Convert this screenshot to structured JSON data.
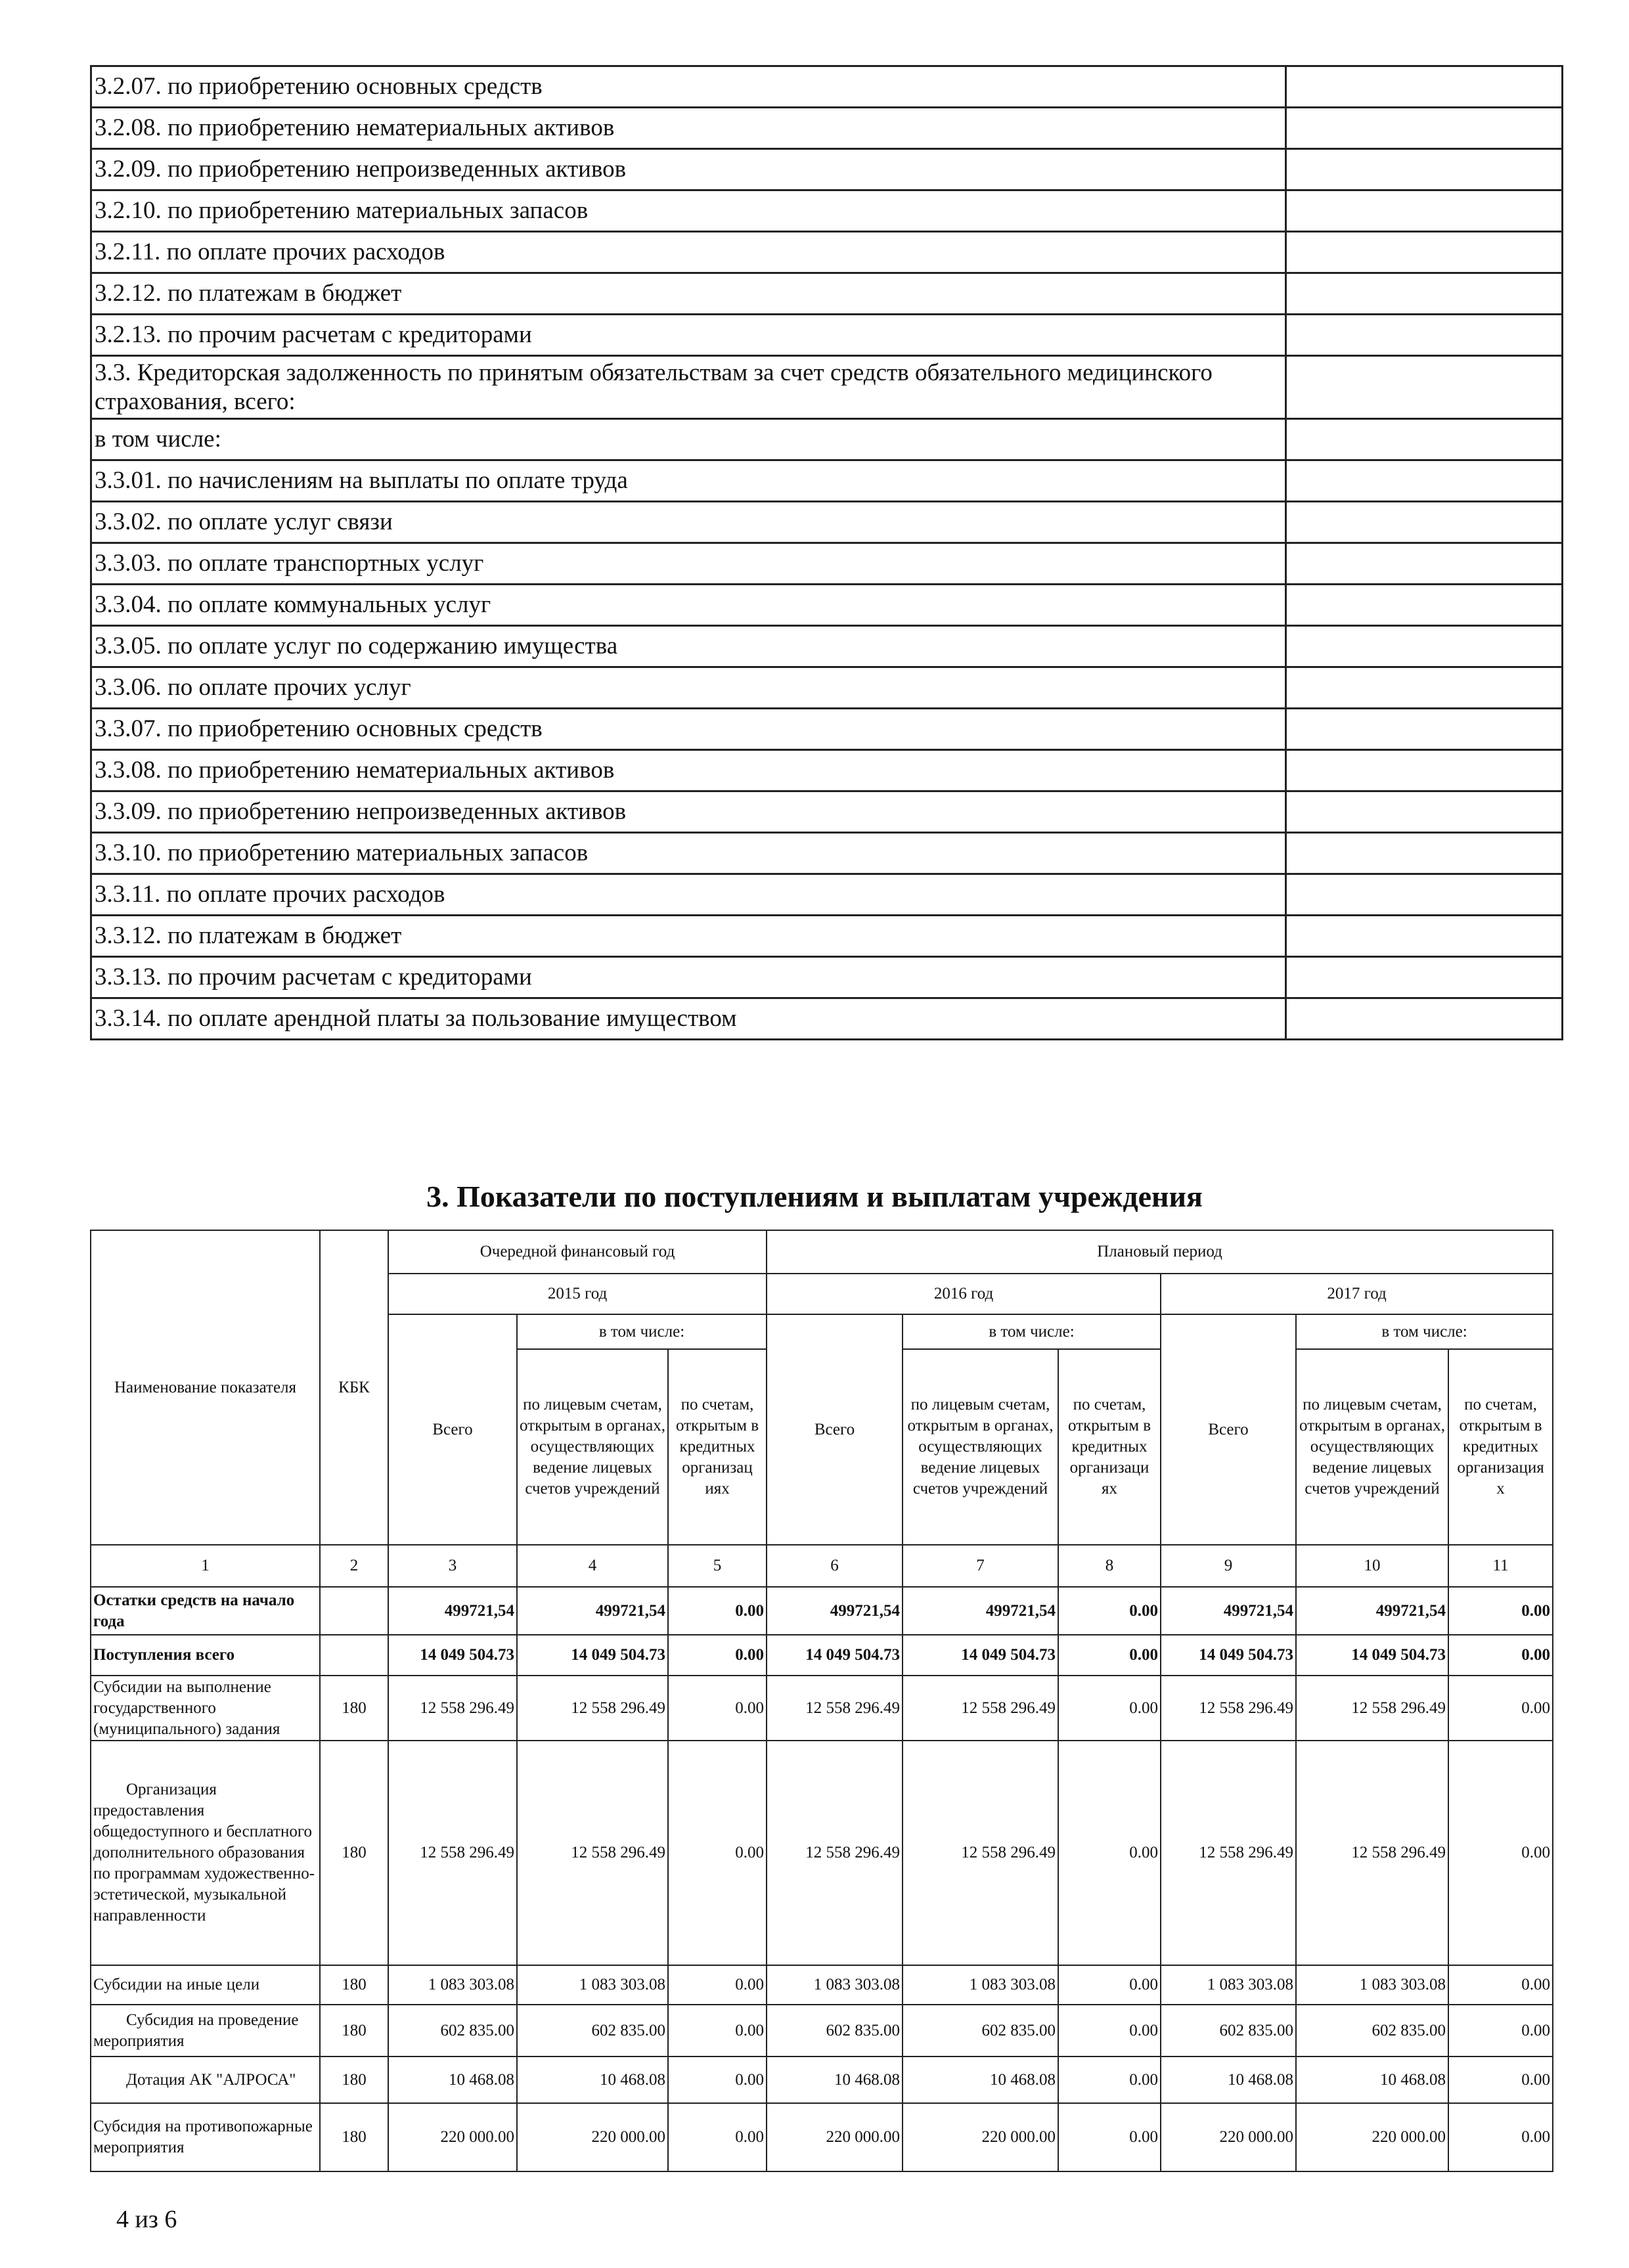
{
  "top_table": {
    "rows": [
      "3.2.07. по приобретению основных средств",
      "3.2.08. по приобретению нематериальных активов",
      "3.2.09. по приобретению непроизведенных активов",
      "3.2.10. по приобретению материальных запасов",
      "3.2.11. по оплате прочих расходов",
      "3.2.12. по платежам в бюджет",
      "3.2.13. по прочим расчетам с кредиторами",
      "3.3.   Кредиторская задолженность по принятым обязательствам за счет средств обязательного медицинского страхования, всего:",
      "в том числе:",
      "3.3.01. по начислениям на выплаты по оплате труда",
      "3.3.02. по оплате услуг связи",
      "3.3.03. по оплате транспортных услуг",
      "3.3.04. по оплате коммунальных услуг",
      "3.3.05. по оплате услуг по содержанию имущества",
      "3.3.06. по оплате прочих услуг",
      "3.3.07. по приобретению основных средств",
      "3.3.08. по приобретению нематериальных активов",
      "3.3.09. по приобретению непроизведенных активов",
      "3.3.10. по приобретению материальных запасов",
      "3.3.11. по оплате прочих расходов",
      "3.3.12. по платежам в бюджет",
      "3.3.13. по прочим расчетам с кредиторами",
      "3.3.14. по оплате арендной платы за пользование имуществом"
    ]
  },
  "section_title": "3. Показатели по поступлениям и выплатам учреждения",
  "main_table": {
    "header": {
      "name": "Наименование показателя",
      "kbk": "КБК",
      "current_year_group": "Очередной финансовый год",
      "planned_group": "Плановый период",
      "years": [
        "2015 год",
        "2016 год",
        "2017 год"
      ],
      "including": "в том числе:",
      "total": "Всего",
      "sub1": "по лицевым счетам, открытым в органах, осуществляющих ведение лицевых счетов учреждений",
      "sub2_2015": "по счетам, открытым в кредитных организац иях",
      "sub2_2016": "по счетам, открытым в кредитных организаци ях",
      "sub2_2017": "по счетам, открытым в кредитных организация х",
      "col_numbers": [
        "1",
        "2",
        "3",
        "4",
        "5",
        "6",
        "7",
        "8",
        "9",
        "10",
        "11"
      ]
    },
    "rows": [
      {
        "name": "Остатки средств на начало года",
        "kbk": "",
        "bold": true,
        "indent": false,
        "values": [
          "499721,54",
          "499721,54",
          "0.00",
          "499721,54",
          "499721,54",
          "0.00",
          "499721,54",
          "499721,54",
          "0.00"
        ]
      },
      {
        "name": "Поступления всего",
        "kbk": "",
        "bold": true,
        "indent": false,
        "values": [
          "14 049 504.73",
          "14 049 504.73",
          "0.00",
          "14 049 504.73",
          "14 049 504.73",
          "0.00",
          "14 049 504.73",
          "14 049 504.73",
          "0.00"
        ]
      },
      {
        "name": "Субсидии на выполнение государственного (муниципального) задания",
        "kbk": "180",
        "bold": false,
        "indent": false,
        "values": [
          "12 558 296.49",
          "12 558 296.49",
          "0.00",
          "12 558 296.49",
          "12 558 296.49",
          "0.00",
          "12 558 296.49",
          "12 558 296.49",
          "0.00"
        ]
      },
      {
        "name": "Организация предоставления общедоступного и бесплатного дополнительного образования по программам художественно-эстетической, музыкальной направленности",
        "kbk": "180",
        "bold": false,
        "indent": true,
        "values": [
          "12 558 296.49",
          "12 558 296.49",
          "0.00",
          "12 558 296.49",
          "12 558 296.49",
          "0.00",
          "12 558 296.49",
          "12 558 296.49",
          "0.00"
        ]
      },
      {
        "name": "Субсидии на иные цели",
        "kbk": "180",
        "bold": false,
        "indent": false,
        "values": [
          "1 083 303.08",
          "1 083 303.08",
          "0.00",
          "1 083 303.08",
          "1 083 303.08",
          "0.00",
          "1 083 303.08",
          "1 083 303.08",
          "0.00"
        ]
      },
      {
        "name": "Субсидия на проведение мероприятия",
        "kbk": "180",
        "bold": false,
        "indent": true,
        "values": [
          "602 835.00",
          "602 835.00",
          "0.00",
          "602 835.00",
          "602 835.00",
          "0.00",
          "602 835.00",
          "602 835.00",
          "0.00"
        ]
      },
      {
        "name": "Дотация АК \"АЛРОСА\"",
        "kbk": "180",
        "bold": false,
        "indent": true,
        "values": [
          "10 468.08",
          "10 468.08",
          "0.00",
          "10 468.08",
          "10 468.08",
          "0.00",
          "10 468.08",
          "10 468.08",
          "0.00"
        ]
      },
      {
        "name": "Субсидия на противопожарные мероприятия",
        "kbk": "180",
        "bold": false,
        "indent": false,
        "values": [
          "220 000.00",
          "220 000.00",
          "0.00",
          "220 000.00",
          "220 000.00",
          "0.00",
          "220 000.00",
          "220 000.00",
          "0.00"
        ]
      }
    ]
  },
  "footer": {
    "page_number": "4 из 6"
  }
}
